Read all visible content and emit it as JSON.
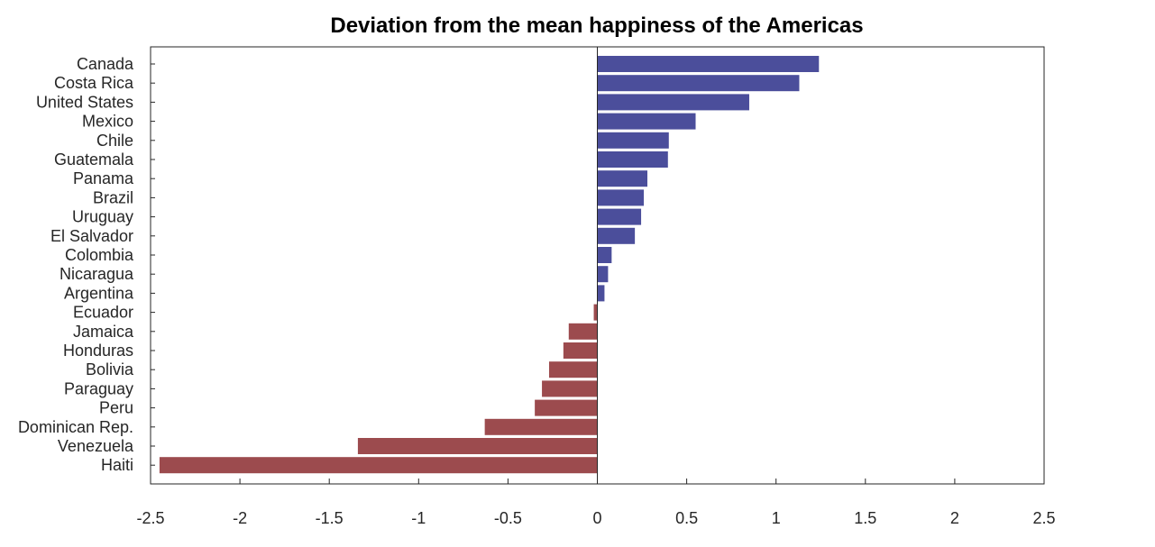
{
  "chart_data": {
    "type": "bar",
    "orientation": "horizontal",
    "title": "Deviation from the mean happiness of the Americas",
    "xlabel": "",
    "ylabel": "",
    "xlim": [
      -2.5,
      2.5
    ],
    "xticks": [
      -2.5,
      -2,
      -1.5,
      -1,
      -0.5,
      0,
      0.5,
      1,
      1.5,
      2,
      2.5
    ],
    "xtick_labels": [
      "-2.5",
      "-2",
      "-1.5",
      "-1",
      "-0.5",
      "0",
      "0.5",
      "1",
      "1.5",
      "2",
      "2.5"
    ],
    "grid": false,
    "colors": {
      "positive": "#4b4e9b",
      "negative": "#9c4b4e"
    },
    "categories": [
      "Canada",
      "Costa Rica",
      "United States",
      "Mexico",
      "Chile",
      "Guatemala",
      "Panama",
      "Brazil",
      "Uruguay",
      "El Salvador",
      "Colombia",
      "Nicaragua",
      "Argentina",
      "Ecuador",
      "Jamaica",
      "Honduras",
      "Bolivia",
      "Paraguay",
      "Peru",
      "Dominican Rep.",
      "Venezuela",
      "Haiti"
    ],
    "values": [
      1.24,
      1.13,
      0.85,
      0.55,
      0.4,
      0.395,
      0.28,
      0.26,
      0.245,
      0.21,
      0.08,
      0.06,
      0.04,
      -0.02,
      -0.16,
      -0.19,
      -0.27,
      -0.31,
      -0.35,
      -0.63,
      -1.34,
      -2.45
    ]
  }
}
